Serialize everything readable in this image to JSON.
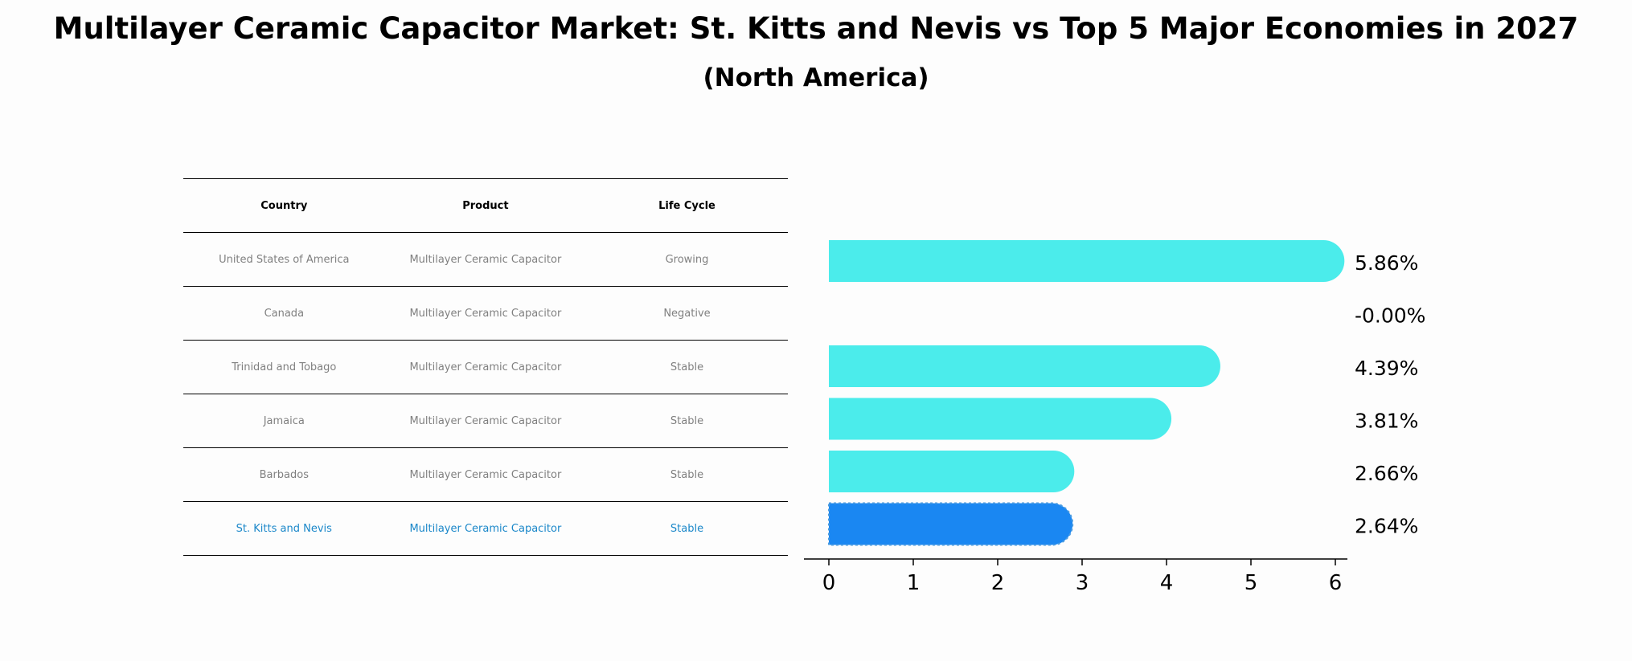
{
  "title": "Multilayer Ceramic Capacitor Market: St. Kitts and Nevis vs Top 5 Major Economies in 2027",
  "subtitle": "(North America)",
  "table": {
    "headers": [
      "Country",
      "Product",
      "Life Cycle"
    ],
    "rows": [
      [
        "United States of America",
        "Multilayer Ceramic Capacitor",
        "Growing"
      ],
      [
        "Canada",
        "Multilayer Ceramic Capacitor",
        "Negative"
      ],
      [
        "Trinidad and Tobago",
        "Multilayer Ceramic Capacitor",
        "Stable"
      ],
      [
        "Jamaica",
        "Multilayer Ceramic Capacitor",
        "Stable"
      ],
      [
        "Barbados",
        "Multilayer Ceramic Capacitor",
        "Stable"
      ],
      [
        "St. Kitts and Nevis",
        "Multilayer Ceramic Capacitor",
        "Stable"
      ]
    ],
    "highlight_row": 5
  },
  "chart_data": {
    "type": "bar",
    "orientation": "horizontal",
    "title": "Multilayer Ceramic Capacitor Market: St. Kitts and Nevis vs Top 5 Major Economies in 2027",
    "subtitle": "(North America)",
    "categories": [
      "United States of America",
      "Canada",
      "Trinidad and Tobago",
      "Jamaica",
      "Barbados",
      "St. Kitts and Nevis"
    ],
    "values": [
      5.86,
      -0.0,
      4.39,
      3.81,
      2.66,
      2.64
    ],
    "value_labels": [
      "5.86%",
      "-0.00%",
      "4.39%",
      "3.81%",
      "2.66%",
      "2.64%"
    ],
    "xlim": [
      -0.3,
      6.15
    ],
    "xticks": [
      0,
      1,
      2,
      3,
      4,
      5,
      6
    ],
    "xlabel": "",
    "ylabel": "",
    "colors": {
      "default": "#4beceb",
      "highlight": "#1a87f2"
    },
    "highlight_index": 5
  }
}
